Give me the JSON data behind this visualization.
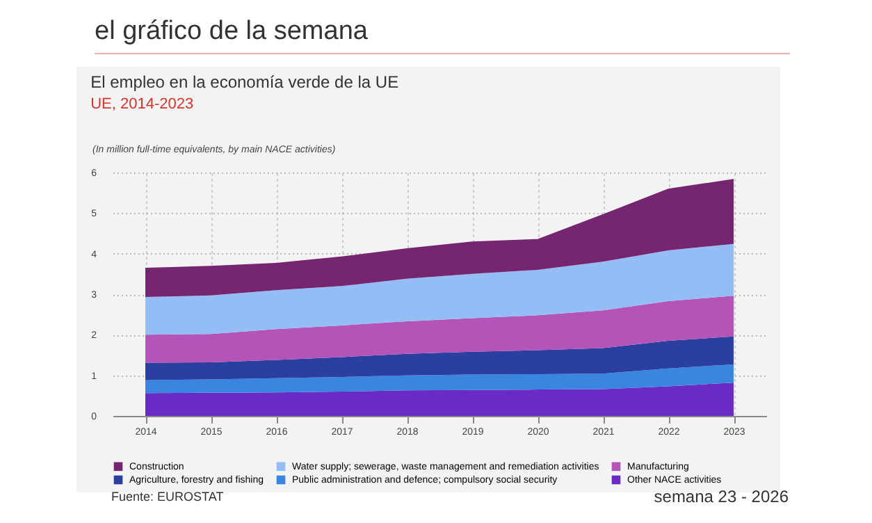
{
  "chart_data": {
    "type": "area",
    "title": "El empleo en la economía verde de la UE",
    "subtitle": "UE, 2014-2023",
    "ylabel": "(In million full-time equivalents, by main NACE activities)",
    "annotations": [
      "el gráfico de la semana",
      "Fuente: EUROSTAT",
      "semana 23 - 2026"
    ],
    "categories": [
      "2014",
      "2015",
      "2016",
      "2017",
      "2018",
      "2019",
      "2020",
      "2021",
      "2022",
      "2023"
    ],
    "stacked": true,
    "ylim": [
      0,
      6
    ],
    "yticks": [
      0,
      1,
      2,
      3,
      4,
      5,
      6
    ],
    "grid": true,
    "legend": "bottom",
    "series": [
      {
        "name": "Other NACE activities",
        "color": "#6a2bc4",
        "values": [
          0.56,
          0.57,
          0.58,
          0.6,
          0.63,
          0.64,
          0.65,
          0.66,
          0.73,
          0.82
        ]
      },
      {
        "name": "Public administration and defence; compulsory social security",
        "color": "#3a85e0",
        "values": [
          0.32,
          0.33,
          0.35,
          0.36,
          0.37,
          0.38,
          0.38,
          0.38,
          0.44,
          0.45
        ]
      },
      {
        "name": "Agriculture, forestry and fishing",
        "color": "#2a3f9f",
        "values": [
          0.43,
          0.42,
          0.45,
          0.49,
          0.53,
          0.56,
          0.59,
          0.63,
          0.68,
          0.69
        ]
      },
      {
        "name": "Manufacturing",
        "color": "#b453b8",
        "values": [
          0.69,
          0.7,
          0.76,
          0.78,
          0.8,
          0.83,
          0.86,
          0.93,
          0.98,
          1.0
        ]
      },
      {
        "name": "Water supply; sewerage, waste management and remediation activities",
        "color": "#95bdf5",
        "values": [
          0.93,
          0.95,
          0.96,
          0.97,
          1.05,
          1.09,
          1.12,
          1.2,
          1.25,
          1.28
        ]
      },
      {
        "name": "Construction",
        "color": "#762570",
        "values": [
          0.72,
          0.73,
          0.67,
          0.73,
          0.75,
          0.8,
          0.76,
          1.17,
          1.52,
          1.6
        ]
      }
    ]
  }
}
